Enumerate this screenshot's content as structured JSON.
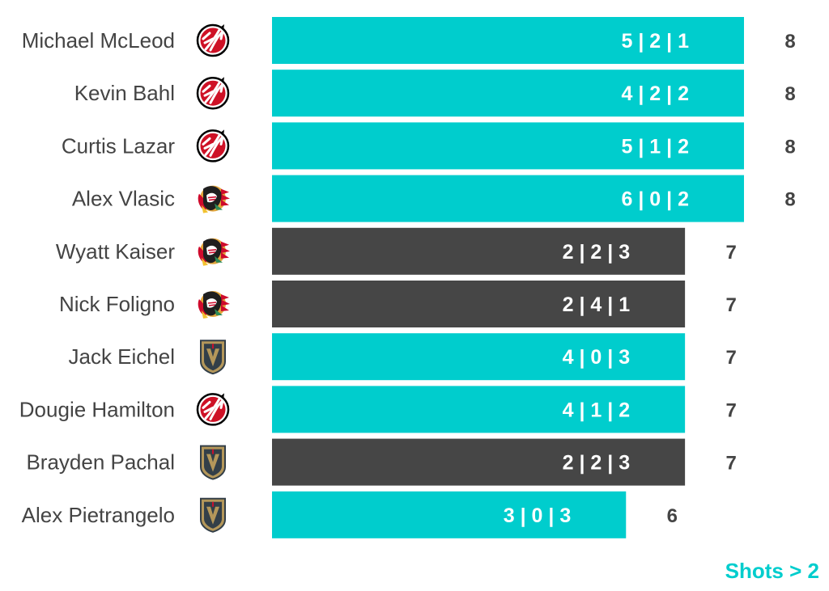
{
  "colors": {
    "highlight": "#00CDCD",
    "default": "#464646",
    "text": "#444444",
    "total_text": "#444444",
    "inbar_text": "#FFFFFF",
    "footnote": "#00CDCD"
  },
  "footnote": "Shots > 2",
  "chart_data": {
    "type": "bar",
    "orientation": "horizontal",
    "xlim": [
      0,
      8
    ],
    "grid": false,
    "categories": [
      "Michael McLeod",
      "Kevin Bahl",
      "Curtis Lazar",
      "Alex Vlasic",
      "Wyatt Kaiser",
      "Nick Foligno",
      "Jack Eichel",
      "Dougie Hamilton",
      "Brayden Pachal",
      "Alex Pietrangelo"
    ],
    "values": [
      8,
      8,
      8,
      8,
      7,
      7,
      7,
      7,
      7,
      6
    ],
    "bar_labels": [
      "5 | 2 | 1",
      "4 | 2 | 2",
      "5 | 1 | 2",
      "6 | 0 | 2",
      "2 | 2 | 3",
      "2 | 4 | 1",
      "4 | 0 | 3",
      "4 | 1 | 2",
      "2 | 2 | 3",
      "3 | 0 | 3"
    ],
    "highlighted": [
      true,
      true,
      true,
      true,
      false,
      false,
      true,
      true,
      false,
      true
    ],
    "team_icons": [
      "devils-logo-icon",
      "devils-logo-icon",
      "devils-logo-icon",
      "blackhawks-logo-icon",
      "blackhawks-logo-icon",
      "blackhawks-logo-icon",
      "golden-knights-logo-icon",
      "devils-logo-icon",
      "golden-knights-logo-icon",
      "golden-knights-logo-icon"
    ]
  }
}
